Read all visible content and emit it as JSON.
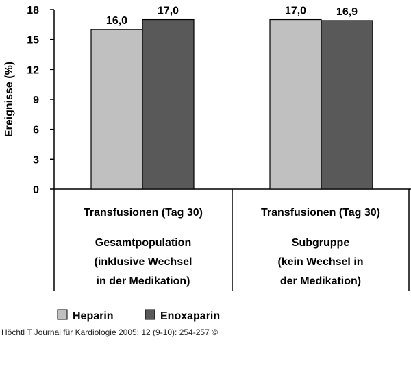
{
  "chart_data": {
    "type": "bar",
    "ylabel": "Ereignisse (%)",
    "ylim": [
      0,
      18
    ],
    "yticks": [
      "0",
      "3",
      "6",
      "9",
      "12",
      "15",
      "18"
    ],
    "groups": [
      {
        "title": "Transfusionen (Tag 30)",
        "lines": [
          "Gesamtpopulation",
          "(inklusive Wechsel",
          "in der Medikation)"
        ]
      },
      {
        "title": "Transfusionen (Tag 30)",
        "lines": [
          "Subgruppe",
          "(kein Wechsel in",
          "der Medikation)"
        ]
      }
    ],
    "series": [
      {
        "name": "Heparin",
        "color": "#c0c0c0",
        "values": [
          16.0,
          17.0
        ],
        "labels": [
          "16,0",
          "17,0"
        ]
      },
      {
        "name": "Enoxaparin",
        "color": "#595959",
        "values": [
          17.0,
          16.9
        ],
        "labels": [
          "17,0",
          "16,9"
        ]
      }
    ],
    "grid": false,
    "legend_position": "bottom-left"
  },
  "footer": "Höchtl T Journal für Kardiologie 2005; 12 (9-10): 254-257 ©"
}
